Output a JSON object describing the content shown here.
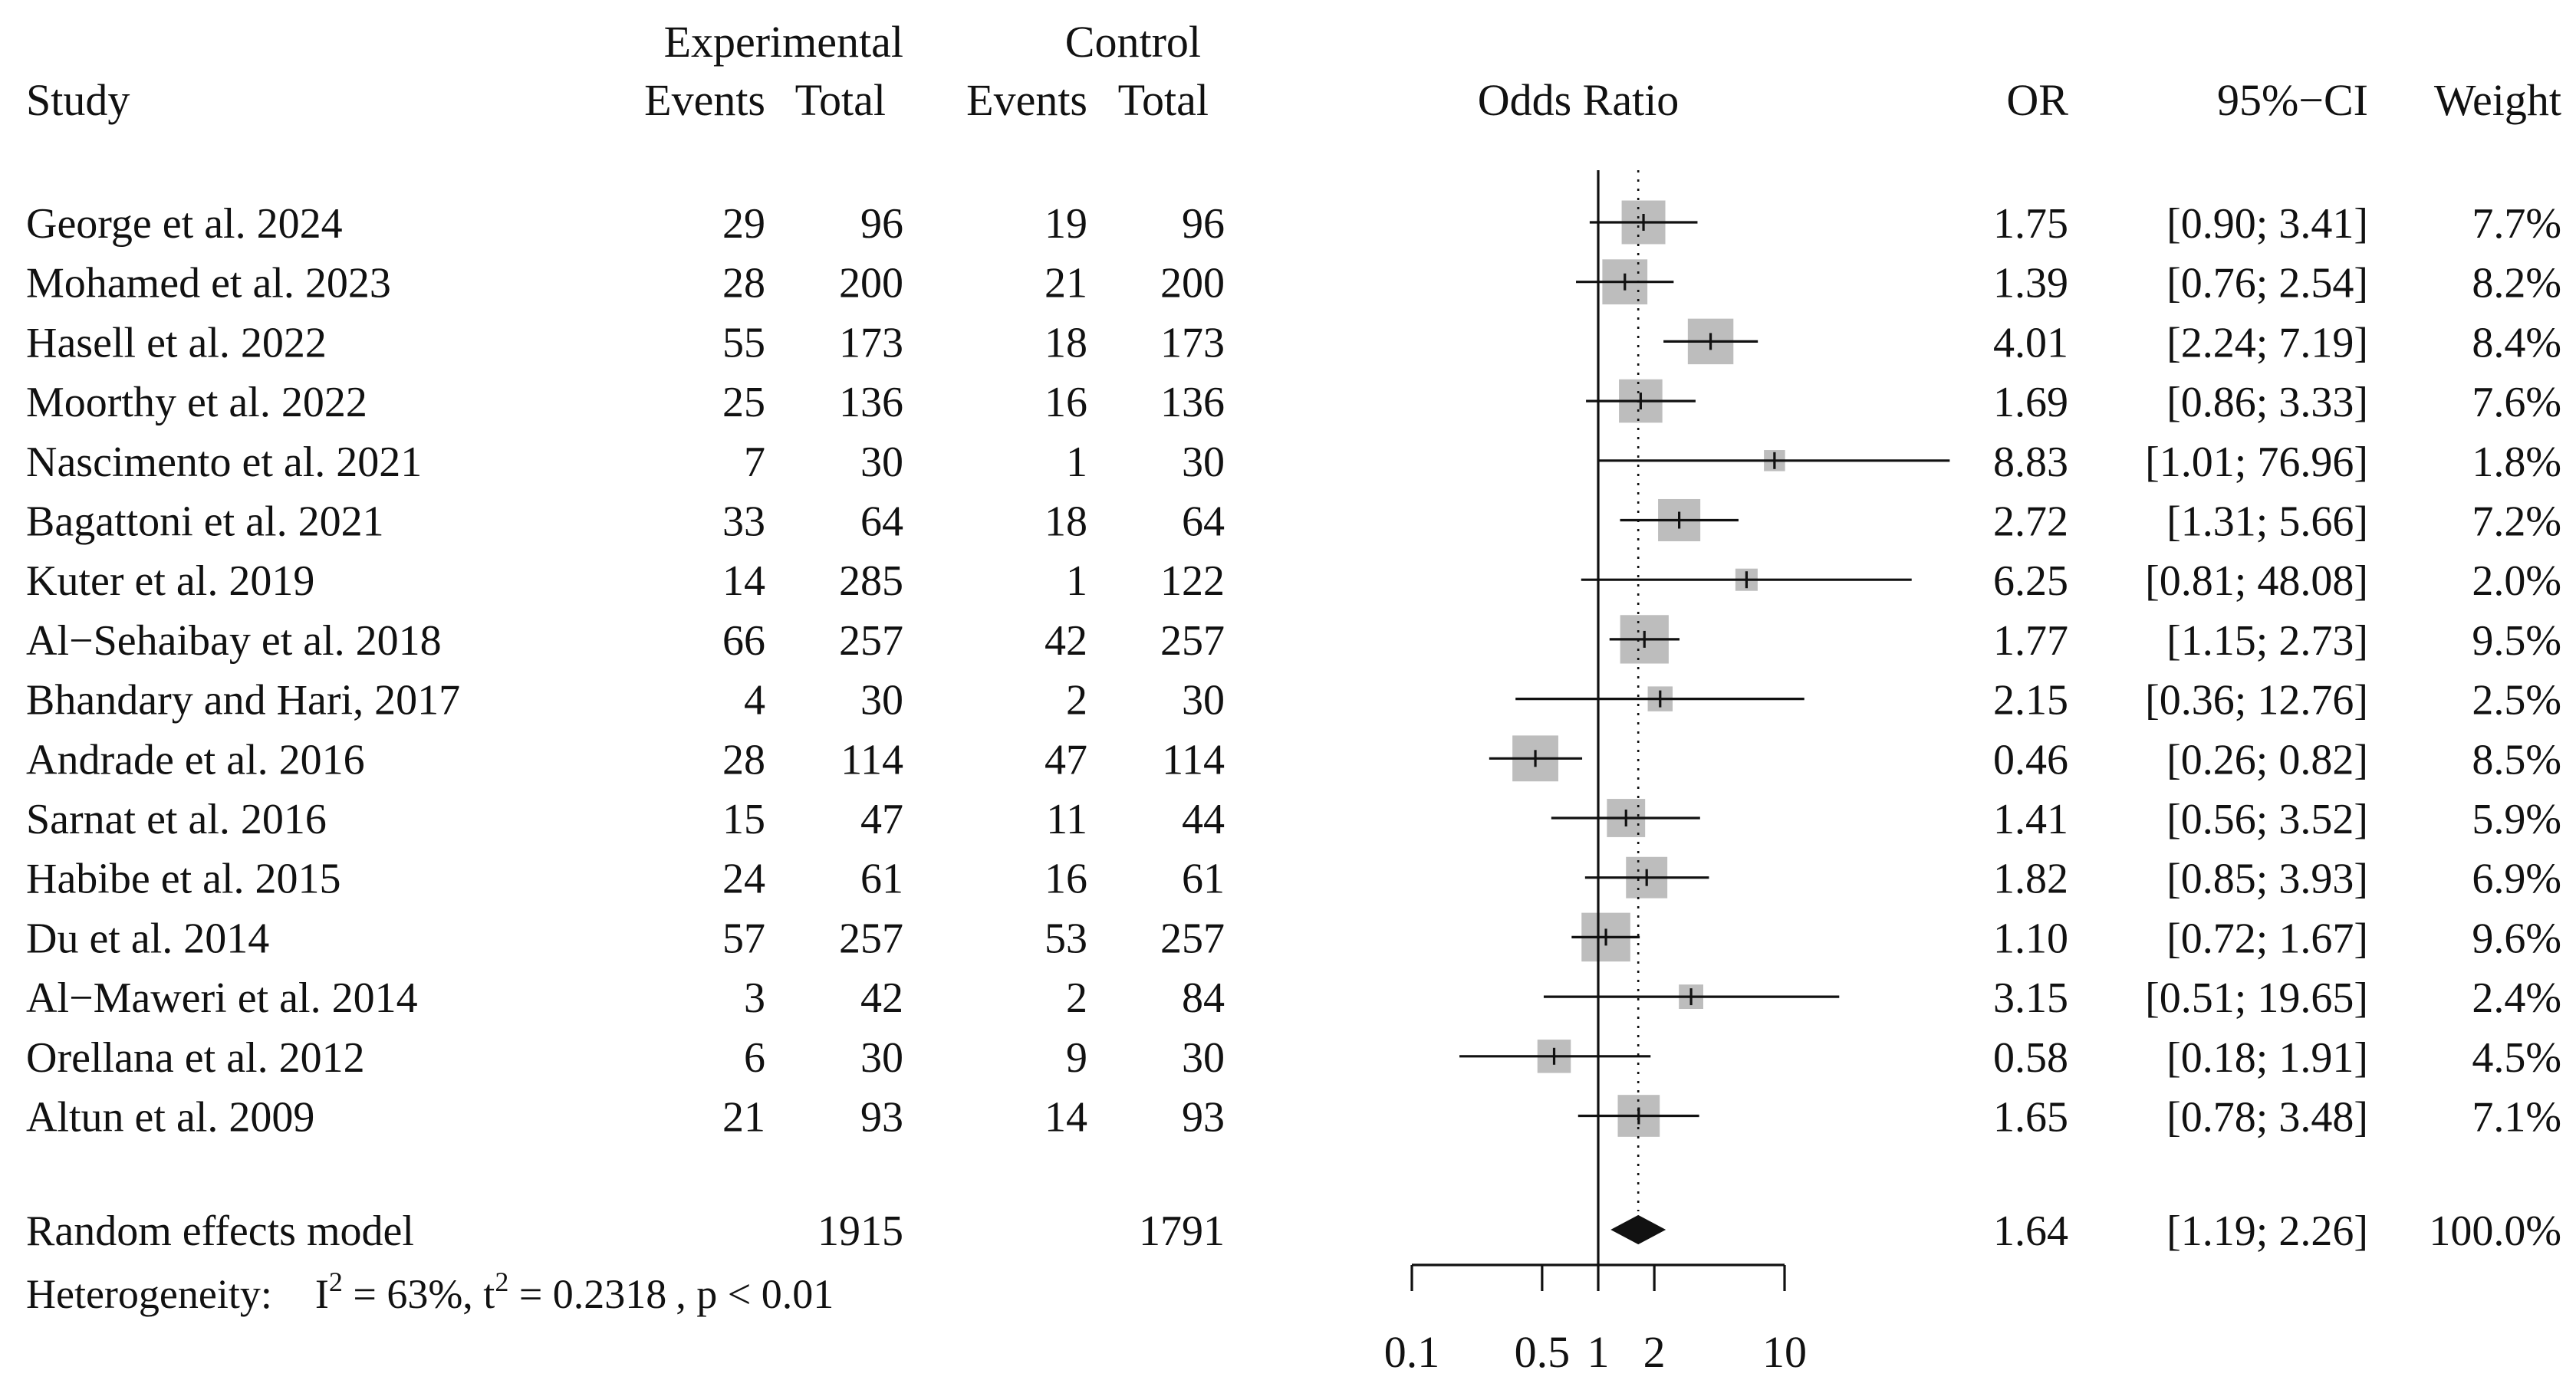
{
  "chart_data": {
    "type": "forest",
    "headers": {
      "study": "Study",
      "experimental": "Experimental",
      "control": "Control",
      "events": "Events",
      "total": "Total",
      "odds_ratio": "Odds Ratio",
      "or": "OR",
      "ci": "95%−CI",
      "weight": "Weight"
    },
    "studies": [
      {
        "study": "George et al. 2024",
        "e_events": "29",
        "e_total": "96",
        "c_events": "19",
        "c_total": "96",
        "or": "1.75",
        "ci": "[0.90;  3.41]",
        "weight": "7.7%",
        "or_value": 1.75,
        "ci_low": 0.9,
        "ci_high": 3.41,
        "weight_value": 7.7
      },
      {
        "study": "Mohamed et al. 2023",
        "e_events": "28",
        "e_total": "200",
        "c_events": "21",
        "c_total": "200",
        "or": "1.39",
        "ci": "[0.76;  2.54]",
        "weight": "8.2%",
        "or_value": 1.39,
        "ci_low": 0.76,
        "ci_high": 2.54,
        "weight_value": 8.2
      },
      {
        "study": "Hasell et al. 2022",
        "e_events": "55",
        "e_total": "173",
        "c_events": "18",
        "c_total": "173",
        "or": "4.01",
        "ci": "[2.24;  7.19]",
        "weight": "8.4%",
        "or_value": 4.01,
        "ci_low": 2.24,
        "ci_high": 7.19,
        "weight_value": 8.4
      },
      {
        "study": "Moorthy et al. 2022",
        "e_events": "25",
        "e_total": "136",
        "c_events": "16",
        "c_total": "136",
        "or": "1.69",
        "ci": "[0.86;  3.33]",
        "weight": "7.6%",
        "or_value": 1.69,
        "ci_low": 0.86,
        "ci_high": 3.33,
        "weight_value": 7.6
      },
      {
        "study": "Nascimento et al. 2021",
        "e_events": "7",
        "e_total": "30",
        "c_events": "1",
        "c_total": "30",
        "or": "8.83",
        "ci": "[1.01; 76.96]",
        "weight": "1.8%",
        "or_value": 8.83,
        "ci_low": 1.01,
        "ci_high": 76.96,
        "weight_value": 1.8
      },
      {
        "study": "Bagattoni et al. 2021",
        "e_events": "33",
        "e_total": "64",
        "c_events": "18",
        "c_total": "64",
        "or": "2.72",
        "ci": "[1.31;  5.66]",
        "weight": "7.2%",
        "or_value": 2.72,
        "ci_low": 1.31,
        "ci_high": 5.66,
        "weight_value": 7.2
      },
      {
        "study": "Kuter et al. 2019",
        "e_events": "14",
        "e_total": "285",
        "c_events": "1",
        "c_total": "122",
        "or": "6.25",
        "ci": "[0.81; 48.08]",
        "weight": "2.0%",
        "or_value": 6.25,
        "ci_low": 0.81,
        "ci_high": 48.08,
        "weight_value": 2.0
      },
      {
        "study": "Al−Sehaibay et al. 2018",
        "e_events": "66",
        "e_total": "257",
        "c_events": "42",
        "c_total": "257",
        "or": "1.77",
        "ci": "[1.15;  2.73]",
        "weight": "9.5%",
        "or_value": 1.77,
        "ci_low": 1.15,
        "ci_high": 2.73,
        "weight_value": 9.5
      },
      {
        "study": "Bhandary and Hari, 2017",
        "e_events": "4",
        "e_total": "30",
        "c_events": "2",
        "c_total": "30",
        "or": "2.15",
        "ci": "[0.36; 12.76]",
        "weight": "2.5%",
        "or_value": 2.15,
        "ci_low": 0.36,
        "ci_high": 12.76,
        "weight_value": 2.5
      },
      {
        "study": "Andrade et al. 2016",
        "e_events": "28",
        "e_total": "114",
        "c_events": "47",
        "c_total": "114",
        "or": "0.46",
        "ci": "[0.26;  0.82]",
        "weight": "8.5%",
        "or_value": 0.46,
        "ci_low": 0.26,
        "ci_high": 0.82,
        "weight_value": 8.5
      },
      {
        "study": "Sarnat et al. 2016",
        "e_events": "15",
        "e_total": "47",
        "c_events": "11",
        "c_total": "44",
        "or": "1.41",
        "ci": "[0.56;  3.52]",
        "weight": "5.9%",
        "or_value": 1.41,
        "ci_low": 0.56,
        "ci_high": 3.52,
        "weight_value": 5.9
      },
      {
        "study": "Habibe et al. 2015",
        "e_events": "24",
        "e_total": "61",
        "c_events": "16",
        "c_total": "61",
        "or": "1.82",
        "ci": "[0.85;  3.93]",
        "weight": "6.9%",
        "or_value": 1.82,
        "ci_low": 0.85,
        "ci_high": 3.93,
        "weight_value": 6.9
      },
      {
        "study": "Du et al. 2014",
        "e_events": "57",
        "e_total": "257",
        "c_events": "53",
        "c_total": "257",
        "or": "1.10",
        "ci": "[0.72;  1.67]",
        "weight": "9.6%",
        "or_value": 1.1,
        "ci_low": 0.72,
        "ci_high": 1.67,
        "weight_value": 9.6
      },
      {
        "study": "Al−Maweri et al. 2014",
        "e_events": "3",
        "e_total": "42",
        "c_events": "2",
        "c_total": "84",
        "or": "3.15",
        "ci": "[0.51; 19.65]",
        "weight": "2.4%",
        "or_value": 3.15,
        "ci_low": 0.51,
        "ci_high": 19.65,
        "weight_value": 2.4
      },
      {
        "study": "Orellana et al. 2012",
        "e_events": "6",
        "e_total": "30",
        "c_events": "9",
        "c_total": "30",
        "or": "0.58",
        "ci": "[0.18;  1.91]",
        "weight": "4.5%",
        "or_value": 0.58,
        "ci_low": 0.18,
        "ci_high": 1.91,
        "weight_value": 4.5
      },
      {
        "study": "Altun et al. 2009",
        "e_events": "21",
        "e_total": "93",
        "c_events": "14",
        "c_total": "93",
        "or": "1.65",
        "ci": "[0.78;  3.48]",
        "weight": "7.1%",
        "or_value": 1.65,
        "ci_low": 0.78,
        "ci_high": 3.48,
        "weight_value": 7.1
      }
    ],
    "pooled": {
      "label": "Random effects model",
      "e_total": "1915",
      "c_total": "1791",
      "or": "1.64",
      "ci": "[1.19;  2.26]",
      "weight": "100.0%",
      "or_value": 1.64,
      "ci_low": 1.19,
      "ci_high": 2.26
    },
    "heterogeneity": {
      "prefix": "Heterogeneity:",
      "i2_label": "I",
      "i2_sup": "2",
      "i2_value": " = 63%",
      "t2_label": ", t",
      "t2_sup": "2",
      "t2_value": " = 0.2318",
      "p_value": ", p < 0.01"
    },
    "x_axis": {
      "scale": "log",
      "ticks": [
        0.1,
        0.5,
        1,
        2,
        10
      ],
      "tick_labels": [
        "0.1",
        "0.5",
        "1",
        "2",
        "10"
      ],
      "null_line": 1,
      "range": [
        0.1,
        10
      ]
    }
  }
}
